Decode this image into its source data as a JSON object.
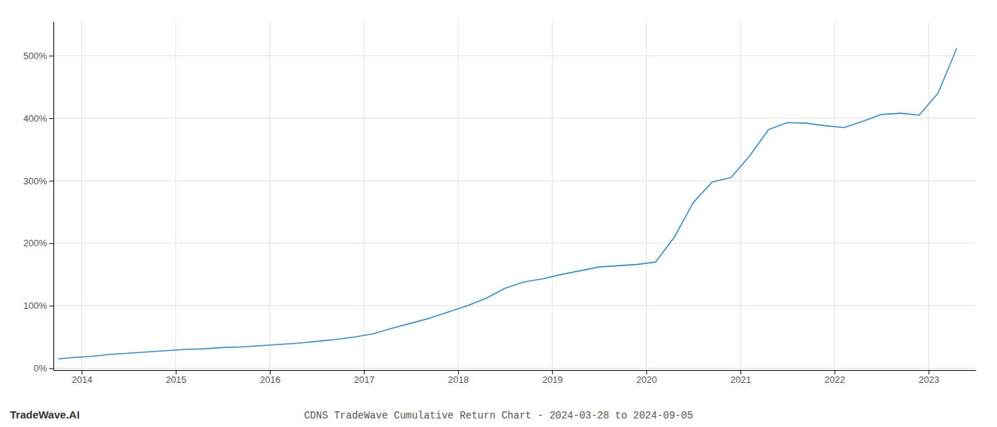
{
  "chart_data": {
    "type": "line",
    "title": "CDNS TradeWave Cumulative Return Chart - 2024-03-28 to 2024-09-05",
    "annotations": [
      "TradeWave.AI"
    ],
    "color": "#3a8abf",
    "grid": true,
    "xlim": [
      2013.7,
      2023.5
    ],
    "ylim": [
      -0.03,
      5.55
    ],
    "xticks": [
      2014,
      2015,
      2016,
      2017,
      2018,
      2019,
      2020,
      2021,
      2022,
      2023
    ],
    "yticks": [
      {
        "value": 0,
        "label": "0%"
      },
      {
        "value": 1,
        "label": "100%"
      },
      {
        "value": 2,
        "label": "200%"
      },
      {
        "value": 3,
        "label": "300%"
      },
      {
        "value": 4,
        "label": "400%"
      },
      {
        "value": 5,
        "label": "500%"
      }
    ],
    "x": [
      2013.75,
      2013.9,
      2014.1,
      2014.3,
      2014.5,
      2014.7,
      2014.9,
      2015.1,
      2015.3,
      2015.5,
      2015.7,
      2015.9,
      2016.1,
      2016.3,
      2016.5,
      2016.7,
      2016.9,
      2017.1,
      2017.3,
      2017.5,
      2017.7,
      2017.9,
      2018.1,
      2018.3,
      2018.5,
      2018.7,
      2018.9,
      2019.1,
      2019.3,
      2019.5,
      2019.7,
      2019.9,
      2020.1,
      2020.3,
      2020.5,
      2020.7,
      2020.9,
      2021.1,
      2021.3,
      2021.5,
      2021.7,
      2021.9,
      2022.1,
      2022.3,
      2022.5,
      2022.7,
      2022.9,
      2023.1,
      2023.3
    ],
    "values": [
      0.15,
      0.17,
      0.19,
      0.22,
      0.24,
      0.26,
      0.28,
      0.3,
      0.31,
      0.33,
      0.34,
      0.36,
      0.38,
      0.4,
      0.43,
      0.46,
      0.5,
      0.55,
      0.64,
      0.72,
      0.8,
      0.9,
      1.0,
      1.12,
      1.28,
      1.38,
      1.43,
      1.5,
      1.56,
      1.62,
      1.64,
      1.66,
      1.7,
      2.1,
      2.65,
      2.98,
      3.05,
      3.4,
      3.82,
      3.93,
      3.92,
      3.88,
      3.85,
      3.95,
      4.06,
      4.08,
      4.05,
      4.4,
      5.12
    ]
  }
}
